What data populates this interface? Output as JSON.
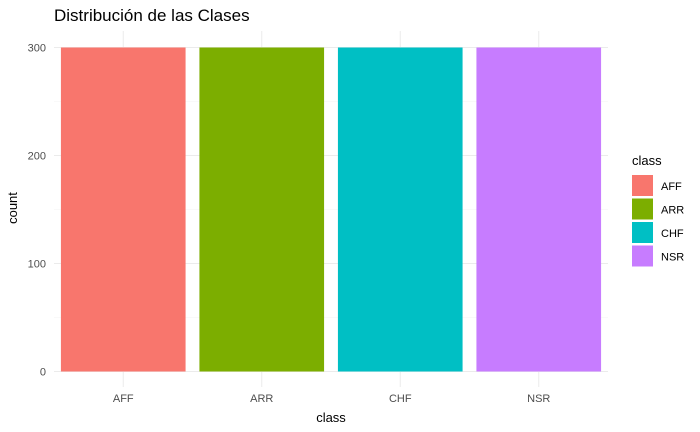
{
  "chart_data": {
    "type": "bar",
    "title": "Distribución de las Clases",
    "xlabel": "class",
    "ylabel": "count",
    "categories": [
      "AFF",
      "ARR",
      "CHF",
      "NSR"
    ],
    "values": [
      300,
      300,
      300,
      300
    ],
    "colors": [
      "#F8766D",
      "#7CAE00",
      "#00BFC4",
      "#C77CFF"
    ],
    "ylim": [
      0,
      315
    ],
    "yticks": [
      0,
      100,
      200,
      300
    ],
    "grid": true,
    "legend": {
      "title": "class",
      "position": "right",
      "entries": [
        "AFF",
        "ARR",
        "CHF",
        "NSR"
      ]
    }
  }
}
